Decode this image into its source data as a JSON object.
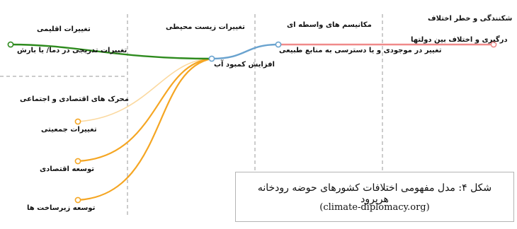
{
  "columns": {
    "climate": "تغییرات اقلیمی",
    "environment": "تغییرات زیست محیطی",
    "mechanisms": "مکانیسم های واسطه ای",
    "fragility": "شکنندگی و خطر اختلاف"
  },
  "sections": {
    "socioeconomic": "محرک های اقتصادی و اجتماعی"
  },
  "nodes": {
    "precip": "تغییرات تدریجی در دما/ یا بارش",
    "water_stress": "افزایش کمبود آب",
    "resource_change": "تغییر در موجودی و یا دسترسی به منابع طبیعی",
    "conflict": "درگیری و اختلاف بین دولتها",
    "population": "تغییرات جمعیتی",
    "economic": "توسعه اقتصادی",
    "infrastructure": "توسعه زیرساخت ها"
  },
  "caption": {
    "title": "شکل ۴: مدل مفهومی اختلافات کشورهای حوضه رودخانه هریرود",
    "source": "(climate-diplomacy.org)"
  },
  "colors": {
    "climate_link": "#2e8b1e",
    "socio_link": "#f5a623",
    "socio_link_faint": "#fbd9a0",
    "mechanism_link": "#6aa3cf",
    "conflict_link": "#f08a8a",
    "divider": "#9a9a9a"
  }
}
